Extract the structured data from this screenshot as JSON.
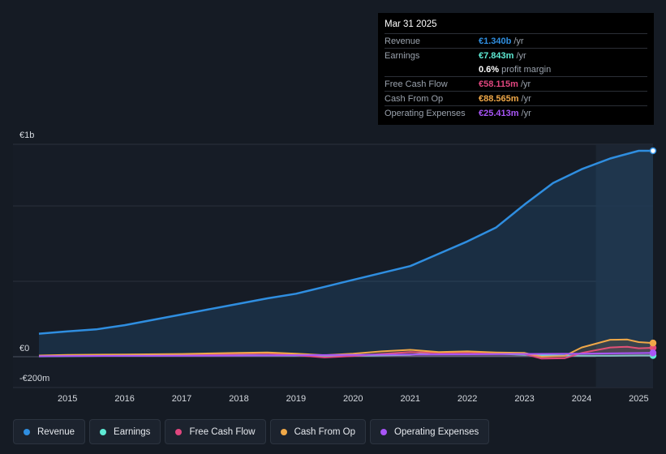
{
  "tooltip": {
    "date": "Mar 31 2025",
    "rows": [
      {
        "label": "Revenue",
        "value": "€1.340b",
        "unit": "/yr",
        "color": "#2f8ee0"
      },
      {
        "label": "Earnings",
        "value": "€7.843m",
        "unit": "/yr",
        "color": "#5eead4"
      },
      {
        "label": "",
        "value": "0.6%",
        "unit": "profit margin",
        "color": "#ffffff"
      },
      {
        "label": "Free Cash Flow",
        "value": "€58.115m",
        "unit": "/yr",
        "color": "#e0467e"
      },
      {
        "label": "Cash From Op",
        "value": "€88.565m",
        "unit": "/yr",
        "color": "#f0a848"
      },
      {
        "label": "Operating Expenses",
        "value": "€25.413m",
        "unit": "/yr",
        "color": "#a855f7"
      }
    ]
  },
  "legend": [
    {
      "label": "Revenue",
      "color": "#2f8ee0"
    },
    {
      "label": "Earnings",
      "color": "#5eead4"
    },
    {
      "label": "Free Cash Flow",
      "color": "#e0467e"
    },
    {
      "label": "Cash From Op",
      "color": "#f0a848"
    },
    {
      "label": "Operating Expenses",
      "color": "#a855f7"
    }
  ],
  "chart_data": {
    "type": "line",
    "title": "",
    "xlabel": "",
    "ylabel": "",
    "y_tick_labels": [
      "€1b",
      "€0",
      "-€200m"
    ],
    "x_tick_labels": [
      "2015",
      "2016",
      "2017",
      "2018",
      "2019",
      "2020",
      "2021",
      "2022",
      "2023",
      "2024",
      "2025"
    ],
    "xlim": [
      2014.5,
      2025.25
    ],
    "ylim": [
      -200,
      1340
    ],
    "grid": true,
    "legend_position": "bottom",
    "highlight_from": 2024.25,
    "series": [
      {
        "name": "Revenue",
        "color": "#2f8ee0",
        "area": true,
        "points": [
          [
            2014.5,
            150
          ],
          [
            2015,
            165
          ],
          [
            2015.5,
            178
          ],
          [
            2016,
            205
          ],
          [
            2016.5,
            240
          ],
          [
            2017,
            275
          ],
          [
            2017.5,
            310
          ],
          [
            2018,
            345
          ],
          [
            2018.5,
            380
          ],
          [
            2019,
            410
          ],
          [
            2019.5,
            455
          ],
          [
            2020,
            500
          ],
          [
            2020.5,
            545
          ],
          [
            2021,
            590
          ],
          [
            2021.5,
            670
          ],
          [
            2022,
            750
          ],
          [
            2022.5,
            840
          ],
          [
            2023,
            990
          ],
          [
            2023.5,
            1130
          ],
          [
            2024,
            1220
          ],
          [
            2024.5,
            1290
          ],
          [
            2025,
            1340
          ],
          [
            2025.25,
            1340
          ]
        ]
      },
      {
        "name": "Earnings",
        "color": "#5eead4",
        "points": [
          [
            2014.5,
            2
          ],
          [
            2015,
            4
          ],
          [
            2016,
            6
          ],
          [
            2017,
            8
          ],
          [
            2018,
            10
          ],
          [
            2019,
            8
          ],
          [
            2020,
            6
          ],
          [
            2021,
            12
          ],
          [
            2021.4,
            28
          ],
          [
            2022,
            30
          ],
          [
            2022.5,
            20
          ],
          [
            2023,
            12
          ],
          [
            2023.5,
            8
          ],
          [
            2024,
            7
          ],
          [
            2024.5,
            6
          ],
          [
            2025,
            8
          ],
          [
            2025.25,
            8
          ]
        ]
      },
      {
        "name": "Free Cash Flow",
        "color": "#e0467e",
        "points": [
          [
            2014.5,
            5
          ],
          [
            2015,
            8
          ],
          [
            2016,
            10
          ],
          [
            2017,
            12
          ],
          [
            2018,
            20
          ],
          [
            2018.5,
            22
          ],
          [
            2019,
            10
          ],
          [
            2019.5,
            -5
          ],
          [
            2020,
            5
          ],
          [
            2020.5,
            18
          ],
          [
            2021,
            30
          ],
          [
            2021.5,
            25
          ],
          [
            2022,
            28
          ],
          [
            2022.5,
            22
          ],
          [
            2023,
            18
          ],
          [
            2023.3,
            -12
          ],
          [
            2023.7,
            -10
          ],
          [
            2024,
            25
          ],
          [
            2024.5,
            60
          ],
          [
            2024.8,
            65
          ],
          [
            2025,
            55
          ],
          [
            2025.25,
            58
          ]
        ]
      },
      {
        "name": "Cash From Op",
        "color": "#f0a848",
        "points": [
          [
            2014.5,
            8
          ],
          [
            2015,
            12
          ],
          [
            2016,
            15
          ],
          [
            2017,
            18
          ],
          [
            2018,
            25
          ],
          [
            2018.5,
            28
          ],
          [
            2019,
            20
          ],
          [
            2019.5,
            10
          ],
          [
            2020,
            20
          ],
          [
            2020.5,
            35
          ],
          [
            2021,
            45
          ],
          [
            2021.5,
            30
          ],
          [
            2022,
            35
          ],
          [
            2022.5,
            28
          ],
          [
            2023,
            25
          ],
          [
            2023.3,
            0
          ],
          [
            2023.7,
            5
          ],
          [
            2024,
            60
          ],
          [
            2024.5,
            110
          ],
          [
            2024.8,
            112
          ],
          [
            2025,
            95
          ],
          [
            2025.25,
            89
          ]
        ]
      },
      {
        "name": "Operating Expenses",
        "color": "#a855f7",
        "points": [
          [
            2014.5,
            3
          ],
          [
            2015,
            5
          ],
          [
            2016,
            6
          ],
          [
            2017,
            7
          ],
          [
            2018,
            8
          ],
          [
            2019,
            10
          ],
          [
            2020,
            12
          ],
          [
            2021,
            14
          ],
          [
            2022,
            16
          ],
          [
            2023,
            18
          ],
          [
            2024,
            20
          ],
          [
            2025,
            24
          ],
          [
            2025.25,
            25
          ]
        ]
      }
    ]
  }
}
